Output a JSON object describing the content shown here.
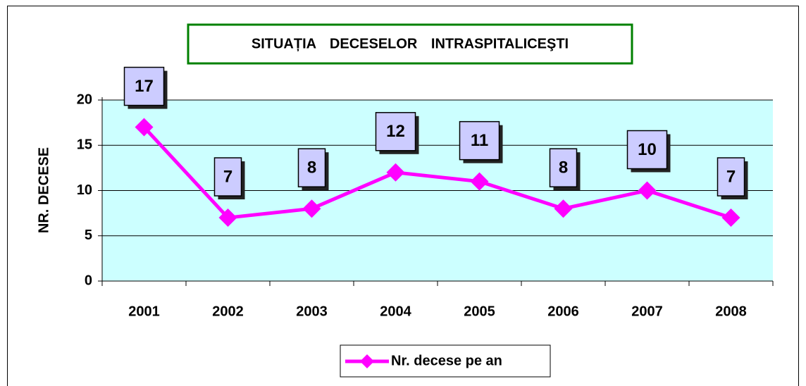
{
  "chart_data": {
    "type": "line",
    "title": "SITUAȚIA DECESELOR INTRASPITALICEŞTI",
    "y_label": "NR. DECESE",
    "categories": [
      "2001",
      "2002",
      "2003",
      "2004",
      "2005",
      "2006",
      "2007",
      "2008"
    ],
    "series": [
      {
        "name": "Nr. decese pe an",
        "color": "#ff00ff",
        "values": [
          17,
          7,
          8,
          12,
          11,
          8,
          10,
          7
        ]
      }
    ],
    "ylim": [
      0,
      20
    ],
    "yticks": [
      0,
      5,
      10,
      15,
      20
    ],
    "grid": true,
    "legend": "bottom"
  }
}
